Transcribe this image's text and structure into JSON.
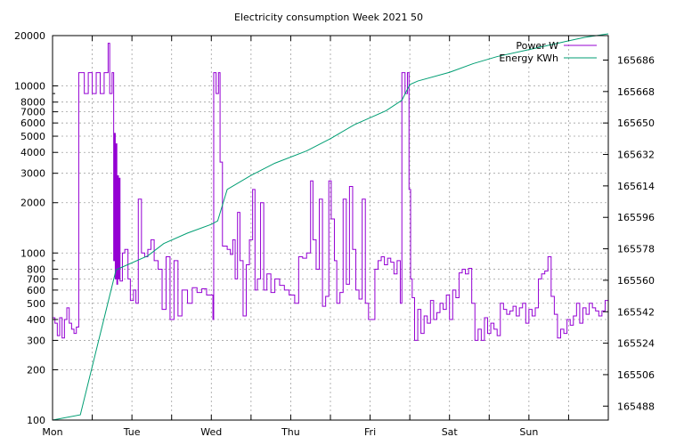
{
  "chart_data": {
    "type": "line",
    "title": "Electricity consumption Week 2021 50",
    "x_axis": {
      "min": 0,
      "max": 7,
      "ticks": [
        {
          "pos": 0,
          "label": "Mon"
        },
        {
          "pos": 1,
          "label": "Tue"
        },
        {
          "pos": 2,
          "label": "Wed"
        },
        {
          "pos": 3,
          "label": "Thu"
        },
        {
          "pos": 4,
          "label": "Fri"
        },
        {
          "pos": 5,
          "label": "Sat"
        },
        {
          "pos": 6,
          "label": "Sun"
        }
      ],
      "minor_per_major": 2
    },
    "y_axis": {
      "scale": "log",
      "min": 100,
      "max": 20000,
      "ticks": [
        {
          "value": 100,
          "label": "100"
        },
        {
          "value": 200,
          "label": "200"
        },
        {
          "value": 300,
          "label": "300"
        },
        {
          "value": 400,
          "label": "400"
        },
        {
          "value": 500,
          "label": "500"
        },
        {
          "value": 600,
          "label": "600"
        },
        {
          "value": 700,
          "label": "700"
        },
        {
          "value": 800,
          "label": "800"
        },
        {
          "value": 1000,
          "label": "1000"
        },
        {
          "value": 2000,
          "label": "2000"
        },
        {
          "value": 3000,
          "label": "3000"
        },
        {
          "value": 4000,
          "label": "4000"
        },
        {
          "value": 5000,
          "label": "5000"
        },
        {
          "value": 6000,
          "label": "6000"
        },
        {
          "value": 7000,
          "label": "7000"
        },
        {
          "value": 8000,
          "label": "8000"
        },
        {
          "value": 10000,
          "label": "10000"
        },
        {
          "value": 20000,
          "label": "20000"
        }
      ]
    },
    "y2_axis": {
      "scale": "linear",
      "min": 165480,
      "max": 165700,
      "ticks": [
        {
          "value": 165488,
          "label": "165488"
        },
        {
          "value": 165506,
          "label": "165506"
        },
        {
          "value": 165524,
          "label": "165524"
        },
        {
          "value": 165542,
          "label": "165542"
        },
        {
          "value": 165560,
          "label": "165560"
        },
        {
          "value": 165578,
          "label": "165578"
        },
        {
          "value": 165596,
          "label": "165596"
        },
        {
          "value": 165614,
          "label": "165614"
        },
        {
          "value": 165632,
          "label": "165632"
        },
        {
          "value": 165650,
          "label": "165650"
        },
        {
          "value": 165668,
          "label": "165668"
        },
        {
          "value": 165686,
          "label": "165686"
        }
      ]
    },
    "grid": true,
    "legend_position": "top-right",
    "series": [
      {
        "name": "Power W",
        "axis": "y",
        "color": "#9400d3",
        "step": true,
        "points": [
          [
            0.0,
            410
          ],
          [
            0.03,
            380
          ],
          [
            0.06,
            320
          ],
          [
            0.09,
            410
          ],
          [
            0.12,
            310
          ],
          [
            0.15,
            400
          ],
          [
            0.18,
            470
          ],
          [
            0.21,
            380
          ],
          [
            0.24,
            350
          ],
          [
            0.27,
            330
          ],
          [
            0.3,
            360
          ],
          [
            0.33,
            12000
          ],
          [
            0.4,
            9000
          ],
          [
            0.45,
            12000
          ],
          [
            0.5,
            9000
          ],
          [
            0.55,
            12000
          ],
          [
            0.6,
            9000
          ],
          [
            0.65,
            12000
          ],
          [
            0.7,
            18000
          ],
          [
            0.72,
            9000
          ],
          [
            0.75,
            12000
          ],
          [
            0.77,
            900
          ],
          [
            0.78,
            5200
          ],
          [
            0.79,
            700
          ],
          [
            0.8,
            4500
          ],
          [
            0.81,
            650
          ],
          [
            0.82,
            2900
          ],
          [
            0.83,
            700
          ],
          [
            0.84,
            2800
          ],
          [
            0.85,
            680
          ],
          [
            0.88,
            1000
          ],
          [
            0.91,
            1050
          ],
          [
            0.95,
            700
          ],
          [
            0.98,
            520
          ],
          [
            1.02,
            600
          ],
          [
            1.05,
            500
          ],
          [
            1.08,
            2100
          ],
          [
            1.12,
            1000
          ],
          [
            1.16,
            950
          ],
          [
            1.2,
            1050
          ],
          [
            1.24,
            1200
          ],
          [
            1.28,
            900
          ],
          [
            1.33,
            800
          ],
          [
            1.38,
            460
          ],
          [
            1.43,
            950
          ],
          [
            1.48,
            400
          ],
          [
            1.53,
            900
          ],
          [
            1.58,
            420
          ],
          [
            1.63,
            600
          ],
          [
            1.7,
            500
          ],
          [
            1.76,
            620
          ],
          [
            1.82,
            580
          ],
          [
            1.88,
            610
          ],
          [
            1.94,
            560
          ],
          [
            2.02,
            400
          ],
          [
            2.03,
            12000
          ],
          [
            2.06,
            9000
          ],
          [
            2.09,
            12000
          ],
          [
            2.11,
            3500
          ],
          [
            2.14,
            1100
          ],
          [
            2.2,
            1050
          ],
          [
            2.24,
            980
          ],
          [
            2.27,
            1200
          ],
          [
            2.3,
            700
          ],
          [
            2.33,
            1750
          ],
          [
            2.36,
            900
          ],
          [
            2.4,
            420
          ],
          [
            2.44,
            850
          ],
          [
            2.48,
            1200
          ],
          [
            2.52,
            2400
          ],
          [
            2.55,
            600
          ],
          [
            2.58,
            700
          ],
          [
            2.62,
            2000
          ],
          [
            2.66,
            600
          ],
          [
            2.7,
            750
          ],
          [
            2.75,
            580
          ],
          [
            2.8,
            700
          ],
          [
            2.86,
            640
          ],
          [
            2.92,
            600
          ],
          [
            2.98,
            560
          ],
          [
            3.05,
            500
          ],
          [
            3.1,
            950
          ],
          [
            3.15,
            930
          ],
          [
            3.2,
            1000
          ],
          [
            3.25,
            2700
          ],
          [
            3.28,
            1200
          ],
          [
            3.32,
            800
          ],
          [
            3.36,
            2100
          ],
          [
            3.4,
            480
          ],
          [
            3.44,
            550
          ],
          [
            3.48,
            2700
          ],
          [
            3.51,
            1600
          ],
          [
            3.55,
            900
          ],
          [
            3.58,
            500
          ],
          [
            3.62,
            580
          ],
          [
            3.66,
            2100
          ],
          [
            3.7,
            650
          ],
          [
            3.74,
            2500
          ],
          [
            3.78,
            1050
          ],
          [
            3.82,
            600
          ],
          [
            3.86,
            530
          ],
          [
            3.9,
            2100
          ],
          [
            3.94,
            500
          ],
          [
            3.98,
            400
          ],
          [
            4.02,
            400
          ],
          [
            4.06,
            800
          ],
          [
            4.1,
            900
          ],
          [
            4.14,
            950
          ],
          [
            4.18,
            850
          ],
          [
            4.22,
            930
          ],
          [
            4.26,
            880
          ],
          [
            4.3,
            750
          ],
          [
            4.34,
            900
          ],
          [
            4.38,
            500
          ],
          [
            4.4,
            12000
          ],
          [
            4.44,
            9000
          ],
          [
            4.47,
            12000
          ],
          [
            4.49,
            2400
          ],
          [
            4.51,
            700
          ],
          [
            4.53,
            540
          ],
          [
            4.56,
            300
          ],
          [
            4.6,
            460
          ],
          [
            4.64,
            330
          ],
          [
            4.68,
            420
          ],
          [
            4.72,
            380
          ],
          [
            4.76,
            520
          ],
          [
            4.8,
            400
          ],
          [
            4.84,
            440
          ],
          [
            4.88,
            500
          ],
          [
            4.92,
            460
          ],
          [
            4.96,
            560
          ],
          [
            5.0,
            400
          ],
          [
            5.04,
            600
          ],
          [
            5.08,
            540
          ],
          [
            5.12,
            760
          ],
          [
            5.16,
            800
          ],
          [
            5.2,
            750
          ],
          [
            5.24,
            810
          ],
          [
            5.28,
            500
          ],
          [
            5.32,
            300
          ],
          [
            5.36,
            350
          ],
          [
            5.4,
            300
          ],
          [
            5.44,
            410
          ],
          [
            5.48,
            330
          ],
          [
            5.52,
            380
          ],
          [
            5.56,
            350
          ],
          [
            5.6,
            320
          ],
          [
            5.64,
            500
          ],
          [
            5.68,
            460
          ],
          [
            5.72,
            430
          ],
          [
            5.76,
            450
          ],
          [
            5.8,
            480
          ],
          [
            5.84,
            420
          ],
          [
            5.88,
            470
          ],
          [
            5.92,
            500
          ],
          [
            5.96,
            380
          ],
          [
            6.0,
            460
          ],
          [
            6.04,
            420
          ],
          [
            6.08,
            470
          ],
          [
            6.12,
            700
          ],
          [
            6.16,
            750
          ],
          [
            6.2,
            780
          ],
          [
            6.24,
            950
          ],
          [
            6.28,
            550
          ],
          [
            6.32,
            430
          ],
          [
            6.36,
            310
          ],
          [
            6.4,
            350
          ],
          [
            6.44,
            330
          ],
          [
            6.48,
            400
          ],
          [
            6.52,
            370
          ],
          [
            6.56,
            420
          ],
          [
            6.6,
            500
          ],
          [
            6.64,
            380
          ],
          [
            6.68,
            470
          ],
          [
            6.72,
            430
          ],
          [
            6.76,
            500
          ],
          [
            6.8,
            470
          ],
          [
            6.84,
            450
          ],
          [
            6.88,
            420
          ],
          [
            6.92,
            450
          ],
          [
            6.96,
            520
          ],
          [
            7.0,
            500
          ]
        ]
      },
      {
        "name": "Energy KWh",
        "axis": "y2",
        "color": "#009e73",
        "step": false,
        "points": [
          [
            0.0,
            165480
          ],
          [
            0.35,
            165483
          ],
          [
            0.8,
            165566
          ],
          [
            1.2,
            165574
          ],
          [
            1.4,
            165581
          ],
          [
            1.7,
            165587
          ],
          [
            2.0,
            165592
          ],
          [
            2.08,
            165594
          ],
          [
            2.2,
            165612
          ],
          [
            2.5,
            165620
          ],
          [
            2.8,
            165627
          ],
          [
            3.2,
            165634
          ],
          [
            3.5,
            165641
          ],
          [
            3.8,
            165649
          ],
          [
            4.0,
            165653
          ],
          [
            4.2,
            165657
          ],
          [
            4.4,
            165663
          ],
          [
            4.5,
            165672
          ],
          [
            4.6,
            165674
          ],
          [
            5.0,
            165679
          ],
          [
            5.3,
            165684
          ],
          [
            5.6,
            165688
          ],
          [
            6.0,
            165692
          ],
          [
            6.4,
            165696
          ],
          [
            6.7,
            165699
          ],
          [
            7.0,
            165701
          ]
        ]
      }
    ]
  }
}
